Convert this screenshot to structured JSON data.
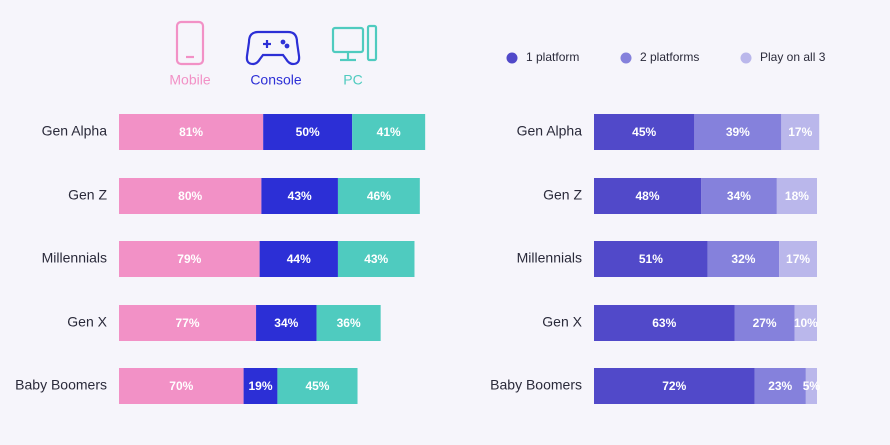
{
  "chart_data": [
    {
      "type": "bar",
      "orientation": "horizontal",
      "stacked": true,
      "categories": [
        "Gen Alpha",
        "Gen Z",
        "Millennials",
        "Gen X",
        "Baby Boomers"
      ],
      "series": [
        {
          "name": "Mobile",
          "color": "#f291c6",
          "values": [
            81,
            80,
            79,
            77,
            70
          ],
          "value_labels": [
            "81%",
            "80%",
            "79%",
            "77%",
            "70%"
          ]
        },
        {
          "name": "Console",
          "color": "#2c2fd6",
          "values": [
            50,
            43,
            44,
            34,
            19
          ],
          "value_labels": [
            "50%",
            "43%",
            "44%",
            "34%",
            "19%"
          ]
        },
        {
          "name": "PC",
          "color": "#4fcbbf",
          "values": [
            41,
            46,
            43,
            36,
            45
          ],
          "value_labels": [
            "41%",
            "46%",
            "43%",
            "36%",
            "45%"
          ]
        }
      ]
    },
    {
      "type": "bar",
      "orientation": "horizontal",
      "stacked": true,
      "categories": [
        "Gen Alpha",
        "Gen Z",
        "Millennials",
        "Gen X",
        "Baby Boomers"
      ],
      "series": [
        {
          "name": "1 platform",
          "color": "#5149c9",
          "values": [
            45,
            48,
            51,
            63,
            72
          ],
          "value_labels": [
            "45%",
            "48%",
            "51%",
            "63%",
            "72%"
          ]
        },
        {
          "name": "2 platforms",
          "color": "#8581dc",
          "values": [
            39,
            34,
            32,
            27,
            23
          ],
          "value_labels": [
            "39%",
            "34%",
            "32%",
            "27%",
            "23%"
          ]
        },
        {
          "name": "Play on all 3",
          "color": "#bab7eb",
          "values": [
            17,
            18,
            17,
            10,
            5
          ],
          "value_labels": [
            "17%",
            "18%",
            "17%",
            "10%",
            "5%"
          ]
        }
      ]
    }
  ]
}
